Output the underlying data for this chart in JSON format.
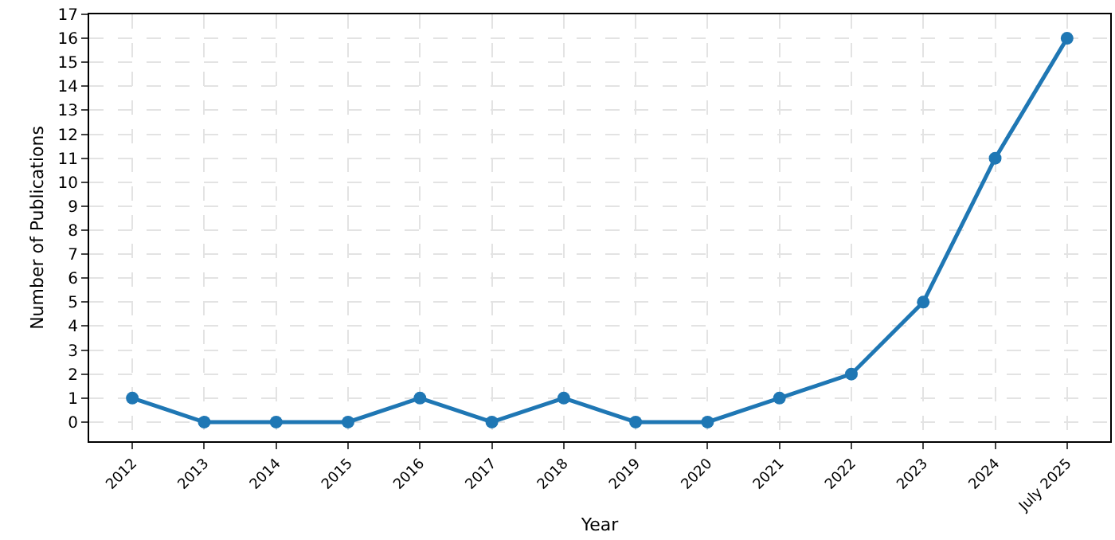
{
  "chart_data": {
    "type": "line",
    "xlabel": "Year",
    "ylabel": "Number of Publications",
    "categories": [
      "2012",
      "2013",
      "2014",
      "2015",
      "2016",
      "2017",
      "2018",
      "2019",
      "2020",
      "2021",
      "2022",
      "2023",
      "2024",
      "July 2025"
    ],
    "series": [
      {
        "color": "#1f77b4",
        "values": [
          1,
          0,
          0,
          0,
          1,
          0,
          1,
          0,
          0,
          1,
          2,
          5,
          11,
          16
        ]
      }
    ],
    "ylim": [
      -0.8,
      17
    ],
    "yticks": [
      0,
      1,
      2,
      3,
      4,
      5,
      6,
      7,
      8,
      9,
      10,
      11,
      12,
      13,
      14,
      15,
      16,
      17
    ],
    "grid": true,
    "marker": "circle",
    "line_style": "solid"
  }
}
